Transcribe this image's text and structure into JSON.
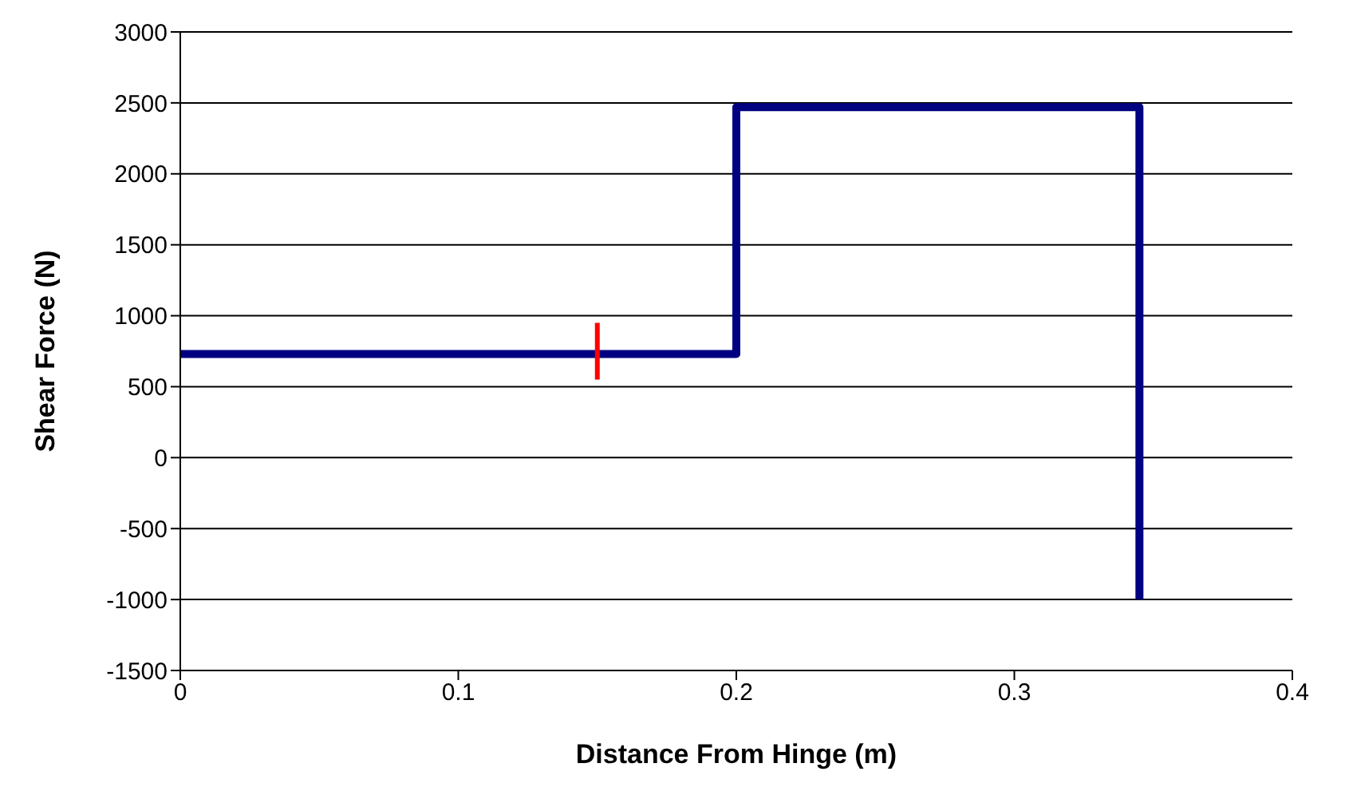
{
  "chart_data": {
    "type": "line",
    "xlabel": "Distance From Hinge (m)",
    "ylabel": "Shear Force (N)",
    "xlim": [
      0,
      0.4
    ],
    "xticks": [
      0,
      0.1,
      0.2,
      0.3,
      0.4
    ],
    "ylim": [
      -1500,
      3000
    ],
    "yticks": [
      -1500,
      -1000,
      -500,
      0,
      500,
      1000,
      1500,
      2000,
      2500,
      3000
    ],
    "grid": "y",
    "marker": "none",
    "line_style": "solid",
    "series": [
      {
        "color": "#000080",
        "x": [
          0,
          0.2,
          0.2,
          0.345,
          0.345
        ],
        "values": [
          730,
          730,
          2470,
          2470,
          -1000
        ]
      },
      {
        "color": "#ff0000",
        "x": [
          0.15,
          0.15
        ],
        "values": [
          550,
          950
        ]
      }
    ]
  }
}
